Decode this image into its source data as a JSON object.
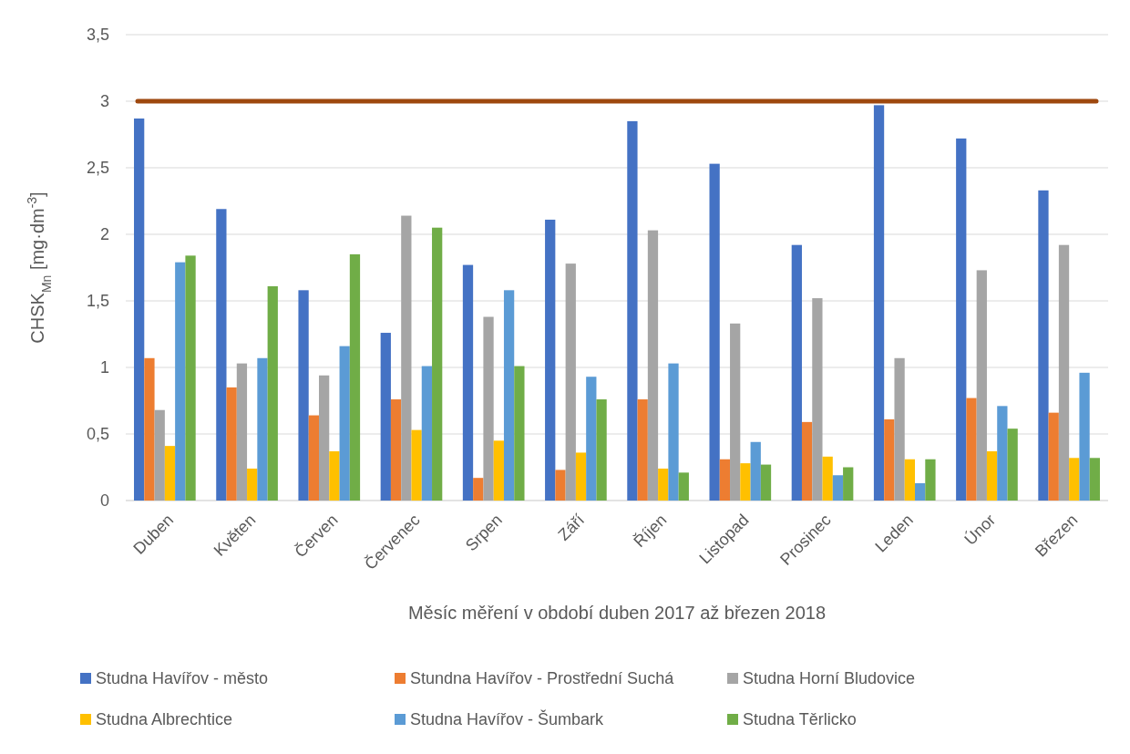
{
  "chart_data": {
    "type": "bar",
    "xlabel": "Měsíc měření v období duben 2017 až březen 2018",
    "ylabel": "CHSK$_{Mn}$ [mg·dm$^{-3}$]",
    "categories": [
      "Duben",
      "Květen",
      "Červen",
      "Červenec",
      "Srpen",
      "Září",
      "Říjen",
      "Listopad",
      "Prosinec",
      "Leden",
      "Únor",
      "Březen"
    ],
    "series": [
      {
        "name": "Studna Havířov - město",
        "color": "#4472c4",
        "values": [
          2.87,
          2.19,
          1.58,
          1.26,
          1.77,
          2.11,
          2.85,
          2.53,
          1.92,
          2.97,
          2.72,
          2.33
        ]
      },
      {
        "name": "Stundna Havířov - Prostřední Suchá",
        "color": "#ed7d31",
        "values": [
          1.07,
          0.85,
          0.64,
          0.76,
          0.17,
          0.23,
          0.76,
          0.31,
          0.59,
          0.61,
          0.77,
          0.66
        ]
      },
      {
        "name": "Studna Horní Bludovice",
        "color": "#a5a5a5",
        "values": [
          0.68,
          1.03,
          0.94,
          2.14,
          1.38,
          1.78,
          2.03,
          1.33,
          1.52,
          1.07,
          1.73,
          1.92
        ]
      },
      {
        "name": "Studna Albrechtice",
        "color": "#ffc000",
        "values": [
          0.41,
          0.24,
          0.37,
          0.53,
          0.45,
          0.36,
          0.24,
          0.28,
          0.33,
          0.31,
          0.37,
          0.32
        ]
      },
      {
        "name": "Studna Havířov - Šumbark",
        "color": "#5b9bd5",
        "values": [
          1.79,
          1.07,
          1.16,
          1.01,
          1.58,
          0.93,
          1.03,
          0.44,
          0.19,
          0.13,
          0.71,
          0.96
        ]
      },
      {
        "name": "Studna Těrlicko",
        "color": "#70ad47",
        "values": [
          1.84,
          1.61,
          1.85,
          2.05,
          1.01,
          0.76,
          0.21,
          0.27,
          0.25,
          0.31,
          0.54,
          0.32
        ]
      }
    ],
    "ylim": [
      0,
      3.5
    ],
    "yticks": [
      0,
      {
        "value": 0.5,
        "label": "0,5"
      },
      1,
      {
        "value": 1.5,
        "label": "1,5"
      },
      2,
      {
        "value": 2.5,
        "label": "2,5"
      },
      3,
      {
        "value": 3.5,
        "label": "3,5"
      }
    ],
    "ref_lines": [
      {
        "axis": "y",
        "value": 3,
        "color": "#9e480e"
      }
    ],
    "grid": "y",
    "legend": "bottom"
  }
}
